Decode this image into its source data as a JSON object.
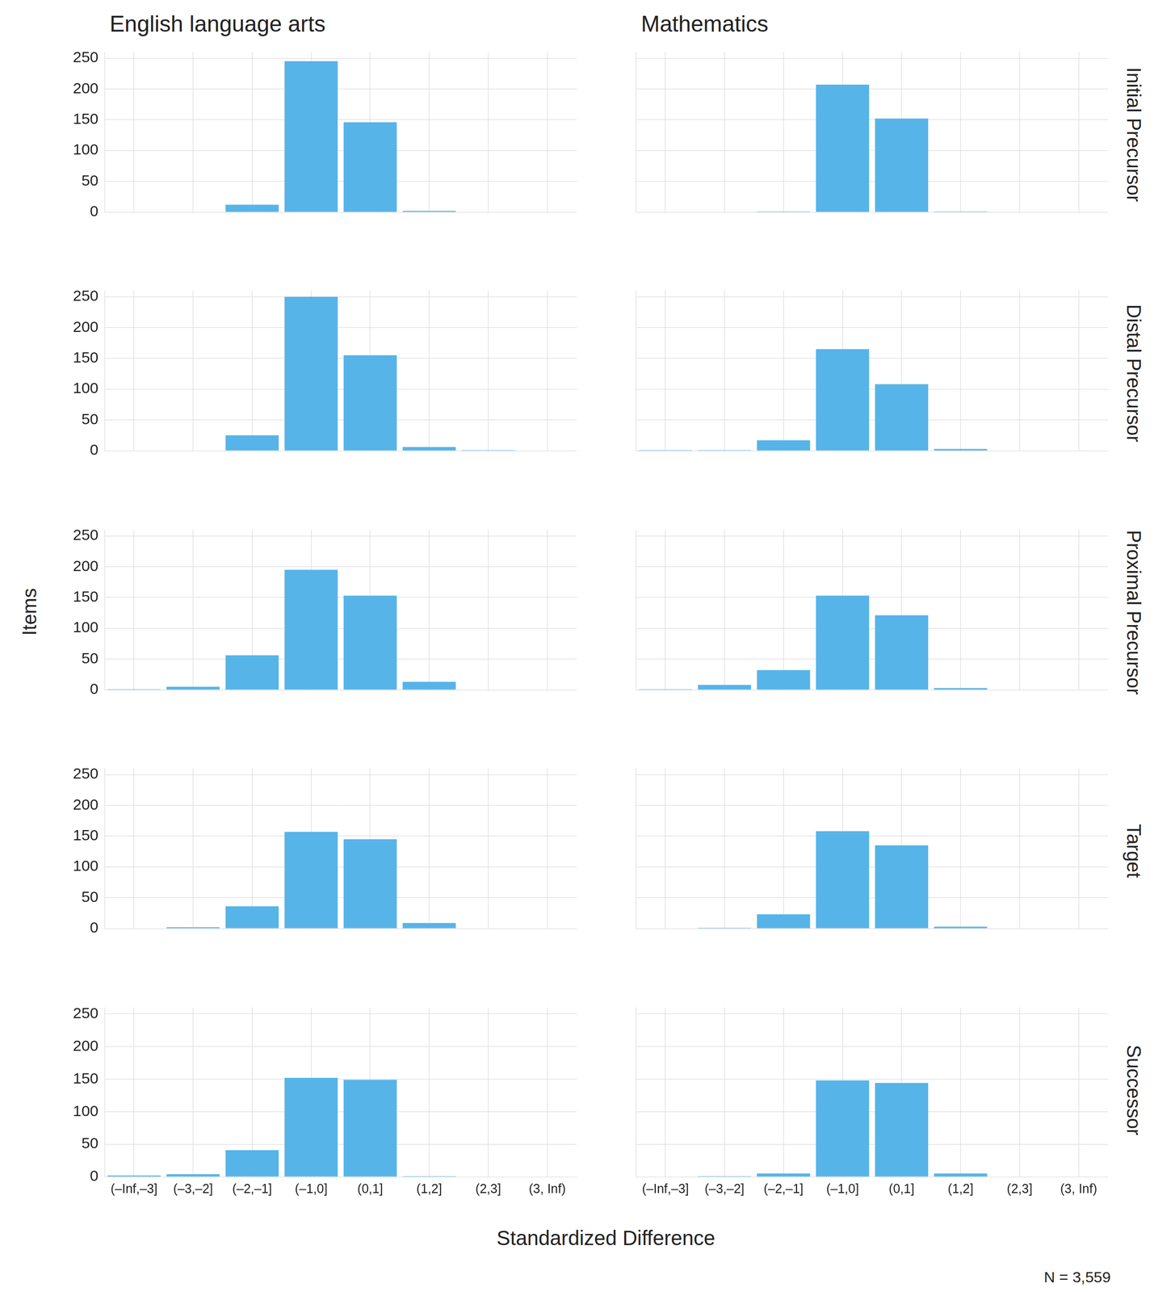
{
  "chart_data": {
    "type": "bar",
    "columns": [
      "English language arts",
      "Mathematics"
    ],
    "rows": [
      "Initial Precursor",
      "Distal Precursor",
      "Proximal Precursor",
      "Target",
      "Successor"
    ],
    "categories": [
      "(–Inf,–3]",
      "(–3,–2]",
      "(–2,–1]",
      "(–1,0]",
      "(0,1]",
      "(1,2]",
      "(2,3]",
      "(3, Inf)"
    ],
    "color": "#56b4e9",
    "ylim": [
      0,
      260
    ],
    "yticks": [
      0,
      50,
      100,
      150,
      200,
      250
    ],
    "grid": true,
    "x_label": "Standardized Difference",
    "y_label": "Items",
    "note": "N = 3,559",
    "panels": [
      {
        "column": "English language arts",
        "row": "Initial Precursor",
        "values": [
          0,
          0,
          12,
          245,
          146,
          2,
          0,
          0
        ]
      },
      {
        "column": "Mathematics",
        "row": "Initial Precursor",
        "values": [
          0,
          0,
          1,
          207,
          152,
          1,
          0,
          0
        ]
      },
      {
        "column": "English language arts",
        "row": "Distal Precursor",
        "values": [
          0,
          0,
          25,
          250,
          155,
          6,
          1,
          0
        ]
      },
      {
        "column": "Mathematics",
        "row": "Distal Precursor",
        "values": [
          1,
          1,
          17,
          165,
          108,
          3,
          0,
          0
        ]
      },
      {
        "column": "English language arts",
        "row": "Proximal Precursor",
        "values": [
          1,
          5,
          56,
          195,
          153,
          13,
          0,
          0
        ]
      },
      {
        "column": "Mathematics",
        "row": "Proximal Precursor",
        "values": [
          1,
          8,
          32,
          153,
          121,
          3,
          0,
          0
        ]
      },
      {
        "column": "English language arts",
        "row": "Target",
        "values": [
          0,
          2,
          36,
          157,
          145,
          9,
          0,
          0
        ]
      },
      {
        "column": "Mathematics",
        "row": "Target",
        "values": [
          0,
          1,
          23,
          158,
          135,
          3,
          0,
          0
        ]
      },
      {
        "column": "English language arts",
        "row": "Successor",
        "values": [
          2,
          4,
          41,
          152,
          149,
          1,
          0,
          0
        ]
      },
      {
        "column": "Mathematics",
        "row": "Successor",
        "values": [
          0,
          1,
          5,
          148,
          144,
          5,
          0,
          0
        ]
      }
    ]
  }
}
